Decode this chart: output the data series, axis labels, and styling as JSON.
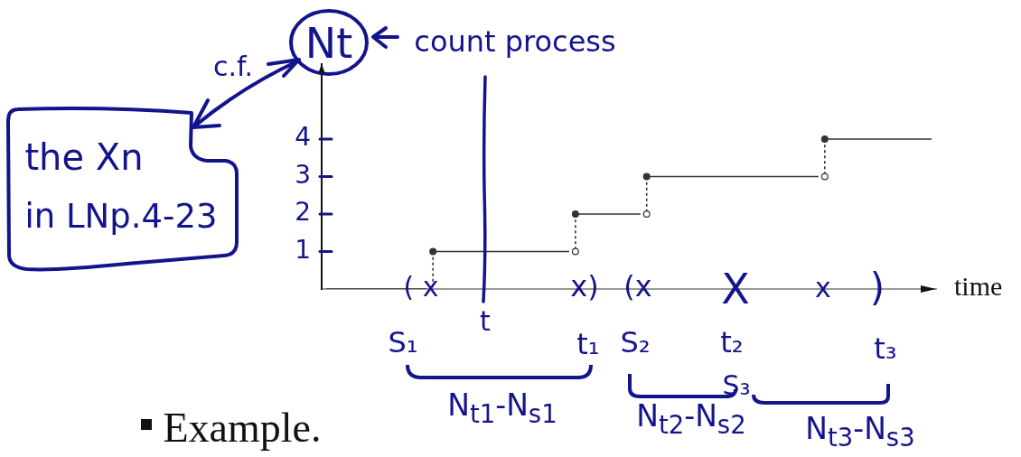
{
  "chart_data": {
    "type": "step",
    "xlabel": "time",
    "ylabel": "Nt",
    "categories": [
      null,
      null,
      null,
      null,
      null,
      null,
      null,
      null,
      null,
      null,
      null,
      null,
      null,
      null,
      null,
      null,
      null,
      null,
      null,
      null,
      null,
      null,
      null,
      null,
      null,
      null,
      null,
      null,
      null,
      null,
      null,
      null,
      null,
      null,
      null,
      null,
      null,
      null,
      null,
      null,
      null,
      null,
      null,
      null,
      null,
      null,
      null,
      null,
      null,
      null,
      null,
      null,
      null,
      null,
      null,
      null,
      null,
      null,
      null,
      null,
      null,
      null,
      null,
      null,
      null,
      null,
      null,
      null,
      null
    ],
    "series": [
      {
        "color": "#333333",
        "marker": "none",
        "values": [
          0,
          0,
          0,
          0,
          0,
          0,
          0,
          0,
          0,
          0,
          0,
          0,
          1,
          1,
          1,
          1,
          1,
          1,
          1,
          1,
          1,
          1,
          1,
          1,
          1,
          1,
          1,
          1,
          2,
          2,
          2,
          2,
          2,
          2,
          2,
          2,
          3,
          3,
          3,
          3,
          3,
          3,
          3,
          3,
          3,
          3,
          3,
          3,
          3,
          3,
          3,
          3,
          3,
          3,
          3,
          3,
          4,
          4,
          4,
          4,
          4,
          4,
          4,
          4,
          4,
          4,
          4,
          4,
          4
        ]
      },
      {
        "type": "scatter",
        "color": "#333333",
        "marker": "circle",
        "values": [
          null,
          null,
          null,
          null,
          null,
          null,
          null,
          null,
          null,
          null,
          null,
          null,
          1,
          null,
          null,
          null,
          null,
          null,
          null,
          null,
          null,
          null,
          null,
          null,
          null,
          null,
          null,
          null,
          2,
          null,
          null,
          null,
          null,
          null,
          null,
          null,
          3,
          null,
          null,
          null,
          null,
          null,
          null,
          null,
          null,
          null,
          null,
          null,
          null,
          null,
          null,
          null,
          null,
          null,
          null,
          null,
          4,
          null,
          null,
          null,
          null,
          null,
          null,
          null,
          null,
          null,
          null,
          null,
          null
        ]
      },
      {
        "type": "scatter",
        "color": "#ffffff",
        "marker": "circle",
        "values": [
          null,
          null,
          null,
          null,
          null,
          null,
          null,
          null,
          null,
          null,
          null,
          null,
          null,
          null,
          null,
          null,
          null,
          null,
          null,
          null,
          null,
          null,
          null,
          null,
          null,
          null,
          null,
          null,
          1,
          null,
          null,
          null,
          null,
          null,
          null,
          null,
          2,
          null,
          null,
          null,
          null,
          null,
          null,
          null,
          null,
          null,
          null,
          null,
          null,
          null,
          null,
          null,
          null,
          null,
          null,
          null,
          3,
          null,
          null,
          null,
          null,
          null,
          null,
          null,
          null,
          null,
          null,
          null,
          null
        ]
      }
    ],
    "ylim": [
      0,
      6
    ],
    "yticks": [
      1,
      2,
      3,
      4
    ],
    "tick_labels": "y",
    "grid": false,
    "legend": false,
    "annotations": [
      "count process",
      "c.f.",
      "the Xn",
      "in LNp.4-23",
      "( x",
      "x)",
      "(x",
      "X",
      "x",
      ")",
      "t",
      "S₁",
      "t₁",
      "S₂",
      "t₂",
      "S₃",
      "t₃",
      "N$_{t1}$-N$_{s1}$",
      "N$_{t2}$-N$_{s2}$",
      "N$_{t3}$-N$_{s3}$",
      "Example."
    ]
  }
}
